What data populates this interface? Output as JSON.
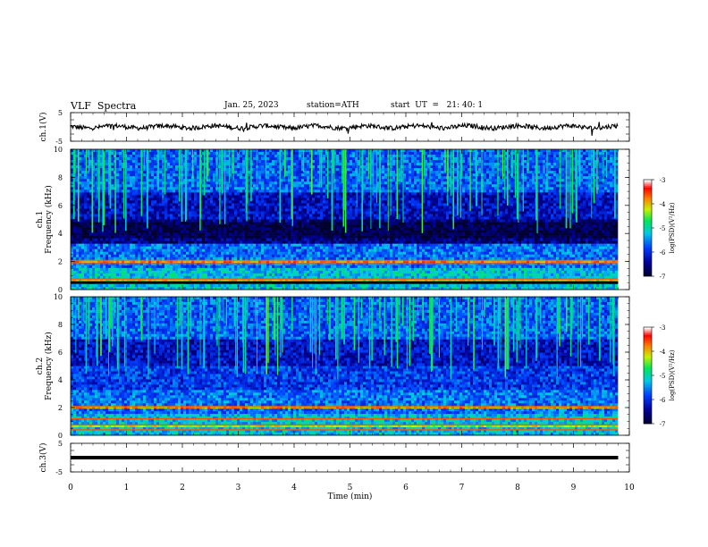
{
  "header": {
    "title": "VLF  Spectra",
    "date": "Jan. 25, 2023",
    "station": "station=ATH",
    "start": "start  UT  =   21: 40: 1"
  },
  "chart_data": [
    {
      "type": "line",
      "panel": "ch1-waveform",
      "ylabel": "ch.1(V)",
      "ylim": [
        -5,
        5
      ],
      "yticks": [
        "5",
        "-5"
      ],
      "description_values": {
        "baseline_v": 0
      }
    },
    {
      "type": "heatmap",
      "panel": "ch1-spectrogram",
      "ylabel": "ch.1\nFrequency  (kHz)",
      "ylim": [
        0,
        10
      ],
      "yticks": [
        "0",
        "2",
        "4",
        "6",
        "8",
        "10"
      ],
      "colorbar": {
        "label": "log(PSD)(V²/Hz)",
        "range": [
          -7,
          -3
        ],
        "ticks": [
          "-3",
          "-4",
          "-5",
          "-6",
          "-7"
        ]
      }
    },
    {
      "type": "heatmap",
      "panel": "ch2-spectrogram",
      "ylabel": "ch.2\nFrequency  (kHz)",
      "ylim": [
        0,
        10
      ],
      "yticks": [
        "0",
        "2",
        "4",
        "6",
        "8",
        "10"
      ],
      "colorbar": {
        "label": "log(PSD)(V²/Hz)",
        "range": [
          -7,
          -3
        ],
        "ticks": [
          "-3",
          "-4",
          "-5",
          "-6",
          "-7"
        ]
      }
    },
    {
      "type": "line",
      "panel": "ch3-waveform",
      "ylabel": "ch.3(V)",
      "ylim": [
        -5,
        5
      ],
      "yticks": [
        "5",
        "-5"
      ],
      "description_values": {
        "baseline_v": 0
      }
    }
  ],
  "xaxis": {
    "label": "Time  (min)",
    "range": [
      0,
      10
    ],
    "ticks": [
      "0",
      "1",
      "2",
      "3",
      "4",
      "5",
      "6",
      "7",
      "8",
      "9",
      "10"
    ],
    "data_end_min": 9.8
  },
  "colors": {
    "low": "#000066",
    "mid": "#00cc44",
    "high": "#ff0000",
    "peak": "#ffffff"
  }
}
